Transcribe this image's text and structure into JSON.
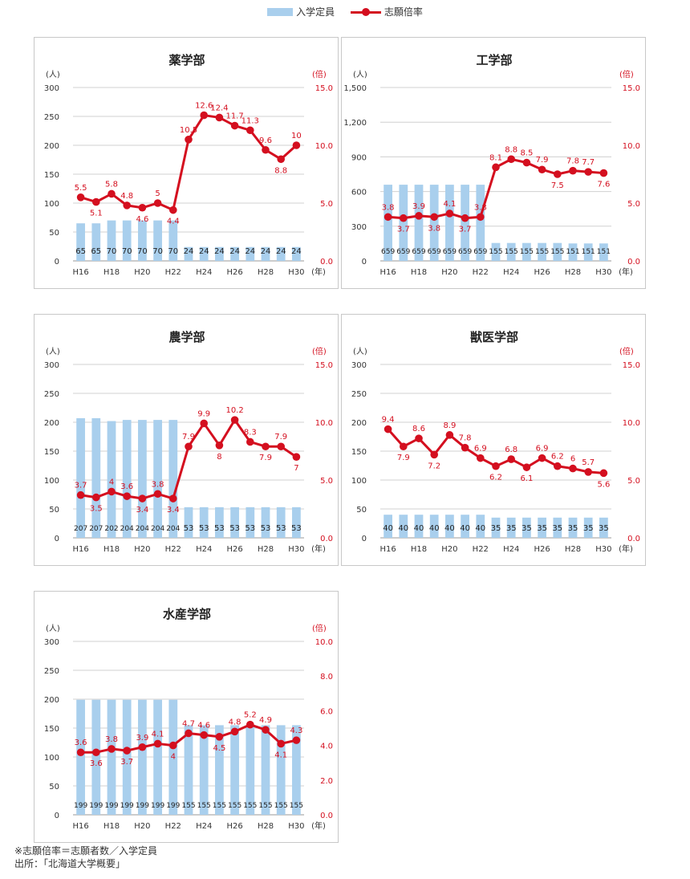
{
  "legend": {
    "bar_label": "入学定員",
    "line_label": "志願倍率",
    "bar_color": "#a9cfed",
    "line_color": "#d40f1f"
  },
  "notes": {
    "formula": "※志願倍率＝志願者数／入学定員",
    "source": "出所：｢北海道大学概要｣"
  },
  "chart_data": [
    {
      "type": "bar+line",
      "title": "薬学部",
      "left_unit": "(人)",
      "right_unit": "(倍)",
      "x_unit": "(年)",
      "categories": [
        "H16",
        "H17",
        "H18",
        "H19",
        "H20",
        "H21",
        "H22",
        "H23",
        "H24",
        "H25",
        "H26",
        "H27",
        "H28",
        "H29",
        "H30"
      ],
      "x_tick_labels": [
        "H16",
        "",
        "H18",
        "",
        "H20",
        "",
        "H22",
        "",
        "H24",
        "",
        "H26",
        "",
        "H28",
        "",
        "H30"
      ],
      "left_ticks": [
        "0",
        "50",
        "100",
        "150",
        "200",
        "250",
        "300"
      ],
      "left_max": 300,
      "right_ticks": [
        "0.0",
        "5.0",
        "10.0",
        "15.0"
      ],
      "right_max": 15,
      "series": [
        {
          "name": "入学定員",
          "type": "bar",
          "axis": "left",
          "values": [
            65,
            65,
            70,
            70,
            70,
            70,
            70,
            24,
            24,
            24,
            24,
            24,
            24,
            24,
            24
          ]
        },
        {
          "name": "志願倍率",
          "type": "line",
          "axis": "right",
          "values": [
            5.5,
            5.1,
            5.8,
            4.8,
            4.6,
            5.0,
            4.4,
            10.5,
            12.6,
            12.4,
            11.7,
            11.3,
            9.6,
            8.8,
            10.0
          ]
        }
      ]
    },
    {
      "type": "bar+line",
      "title": "工学部",
      "left_unit": "(人)",
      "right_unit": "(倍)",
      "x_unit": "(年)",
      "categories": [
        "H16",
        "H17",
        "H18",
        "H19",
        "H20",
        "H21",
        "H22",
        "H23",
        "H24",
        "H25",
        "H26",
        "H27",
        "H28",
        "H29",
        "H30"
      ],
      "x_tick_labels": [
        "H16",
        "",
        "H18",
        "",
        "H20",
        "",
        "H22",
        "",
        "H24",
        "",
        "H26",
        "",
        "H28",
        "",
        "H30"
      ],
      "left_ticks": [
        "0",
        "300",
        "600",
        "900",
        "1,200",
        "1,500"
      ],
      "left_max": 1500,
      "right_ticks": [
        "0.0",
        "5.0",
        "10.0",
        "15.0"
      ],
      "right_max": 15,
      "series": [
        {
          "name": "入学定員",
          "type": "bar",
          "axis": "left",
          "values": [
            659,
            659,
            659,
            659,
            659,
            659,
            659,
            155,
            155,
            155,
            155,
            155,
            151,
            151,
            151
          ]
        },
        {
          "name": "志願倍率",
          "type": "line",
          "axis": "right",
          "values": [
            3.8,
            3.7,
            3.9,
            3.8,
            4.1,
            3.7,
            3.8,
            8.1,
            8.8,
            8.5,
            7.9,
            7.5,
            7.8,
            7.7,
            7.6
          ]
        }
      ]
    },
    {
      "type": "bar+line",
      "title": "農学部",
      "left_unit": "(人)",
      "right_unit": "(倍)",
      "x_unit": "(年)",
      "categories": [
        "H16",
        "H17",
        "H18",
        "H19",
        "H20",
        "H21",
        "H22",
        "H23",
        "H24",
        "H25",
        "H26",
        "H27",
        "H28",
        "H29",
        "H30"
      ],
      "x_tick_labels": [
        "H16",
        "",
        "H18",
        "",
        "H20",
        "",
        "H22",
        "",
        "H24",
        "",
        "H26",
        "",
        "H28",
        "",
        "H30"
      ],
      "left_ticks": [
        "0",
        "50",
        "100",
        "150",
        "200",
        "250",
        "300"
      ],
      "left_max": 300,
      "right_ticks": [
        "0.0",
        "5.0",
        "10.0",
        "15.0"
      ],
      "right_max": 15,
      "series": [
        {
          "name": "入学定員",
          "type": "bar",
          "axis": "left",
          "values": [
            207,
            207,
            202,
            204,
            204,
            204,
            204,
            53,
            53,
            53,
            53,
            53,
            53,
            53,
            53
          ]
        },
        {
          "name": "志願倍率",
          "type": "line",
          "axis": "right",
          "values": [
            3.7,
            3.5,
            4.0,
            3.6,
            3.4,
            3.8,
            3.4,
            7.9,
            9.9,
            8.0,
            10.2,
            8.3,
            7.9,
            7.9,
            7.0
          ]
        }
      ]
    },
    {
      "type": "bar+line",
      "title": "獣医学部",
      "left_unit": "(人)",
      "right_unit": "(倍)",
      "x_unit": "(年)",
      "categories": [
        "H16",
        "H17",
        "H18",
        "H19",
        "H20",
        "H21",
        "H22",
        "H23",
        "H24",
        "H25",
        "H26",
        "H27",
        "H28",
        "H29",
        "H30"
      ],
      "x_tick_labels": [
        "H16",
        "",
        "H18",
        "",
        "H20",
        "",
        "H22",
        "",
        "H24",
        "",
        "H26",
        "",
        "H28",
        "",
        "H30"
      ],
      "left_ticks": [
        "0",
        "50",
        "100",
        "150",
        "200",
        "250",
        "300"
      ],
      "left_max": 300,
      "right_ticks": [
        "0.0",
        "5.0",
        "10.0",
        "15.0"
      ],
      "right_max": 15,
      "series": [
        {
          "name": "入学定員",
          "type": "bar",
          "axis": "left",
          "values": [
            40,
            40,
            40,
            40,
            40,
            40,
            40,
            35,
            35,
            35,
            35,
            35,
            35,
            35,
            35
          ]
        },
        {
          "name": "志願倍率",
          "type": "line",
          "axis": "right",
          "values": [
            9.4,
            7.9,
            8.6,
            7.2,
            8.9,
            7.8,
            6.9,
            6.2,
            6.8,
            6.1,
            6.9,
            6.2,
            6.0,
            5.7,
            5.6
          ]
        }
      ]
    },
    {
      "type": "bar+line",
      "title": "水産学部",
      "left_unit": "(人)",
      "right_unit": "(倍)",
      "x_unit": "(年)",
      "categories": [
        "H16",
        "H17",
        "H18",
        "H19",
        "H20",
        "H21",
        "H22",
        "H23",
        "H24",
        "H25",
        "H26",
        "H27",
        "H28",
        "H29",
        "H30"
      ],
      "x_tick_labels": [
        "H16",
        "",
        "H18",
        "",
        "H20",
        "",
        "H22",
        "",
        "H24",
        "",
        "H26",
        "",
        "H28",
        "",
        "H30"
      ],
      "left_ticks": [
        "0",
        "50",
        "100",
        "150",
        "200",
        "250",
        "300"
      ],
      "left_max": 300,
      "right_ticks": [
        "0.0",
        "2.0",
        "4.0",
        "6.0",
        "8.0",
        "10.0"
      ],
      "right_max": 10,
      "series": [
        {
          "name": "入学定員",
          "type": "bar",
          "axis": "left",
          "values": [
            199,
            199,
            199,
            199,
            199,
            199,
            199,
            155,
            155,
            155,
            155,
            155,
            155,
            155,
            155
          ]
        },
        {
          "name": "志願倍率",
          "type": "line",
          "axis": "right",
          "values": [
            3.6,
            3.6,
            3.8,
            3.7,
            3.9,
            4.1,
            4.0,
            4.7,
            4.6,
            4.5,
            4.8,
            5.2,
            4.9,
            4.1,
            4.3
          ]
        }
      ]
    }
  ]
}
